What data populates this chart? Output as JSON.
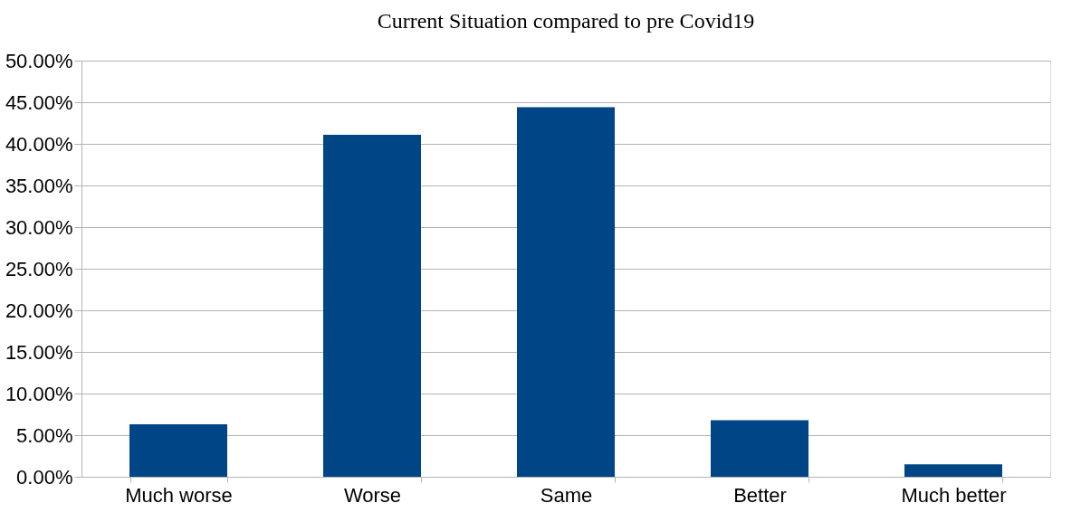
{
  "chart_data": {
    "type": "bar",
    "title": "Current Situation compared to pre Covid19",
    "categories": [
      "Much worse",
      "Worse",
      "Same",
      "Better",
      "Much better"
    ],
    "values": [
      6.3,
      41.1,
      44.4,
      6.8,
      1.5
    ],
    "color": "#004586",
    "ylim": [
      0,
      50
    ],
    "yticks": [
      {
        "value": 0,
        "label": "0.00%"
      },
      {
        "value": 5,
        "label": "5.00%"
      },
      {
        "value": 10,
        "label": "10.00%"
      },
      {
        "value": 15,
        "label": "15.00%"
      },
      {
        "value": 20,
        "label": "20.00%"
      },
      {
        "value": 25,
        "label": "25.00%"
      },
      {
        "value": 30,
        "label": "30.00%"
      },
      {
        "value": 35,
        "label": "35.00%"
      },
      {
        "value": 40,
        "label": "40.00%"
      },
      {
        "value": 45,
        "label": "45.00%"
      },
      {
        "value": 50,
        "label": "50.00%"
      }
    ],
    "grid": "y",
    "legend": false
  }
}
